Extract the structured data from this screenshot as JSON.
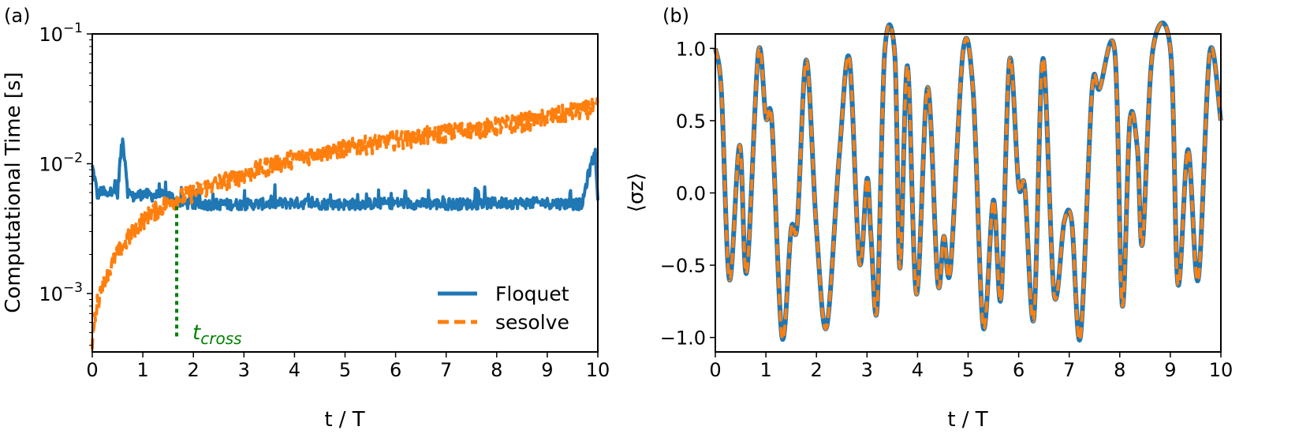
{
  "panel_a_label": "(a)",
  "panel_b_label": "(b)",
  "chart_data": [
    {
      "type": "line",
      "ylabel": "Computational Time [s]",
      "xlabel": "t / T",
      "xlim": [
        0,
        10
      ],
      "ylim_log10": [
        -3.45,
        -1.0
      ],
      "yscale": "log",
      "xticks": [
        "0",
        "1",
        "2",
        "3",
        "4",
        "5",
        "6",
        "7",
        "8",
        "9",
        "10"
      ],
      "yticks": [
        {
          "value": 0.001,
          "base": "10",
          "exp": "−3"
        },
        {
          "value": 0.01,
          "base": "10",
          "exp": "−2"
        },
        {
          "value": 0.1,
          "base": "10",
          "exp": "−1"
        }
      ],
      "legend_position": "lower-right",
      "series": [
        {
          "name": "Floquet",
          "color": "#1f77b4",
          "style": "solid",
          "x": [
            0,
            0.1,
            0.2,
            0.3,
            0.4,
            0.5,
            0.6,
            0.7,
            0.8,
            1,
            1.2,
            1.5,
            1.7,
            2,
            3,
            4,
            5,
            6,
            7,
            8,
            9,
            9.7,
            9.95,
            10
          ],
          "y": [
            0.0085,
            0.0052,
            0.0056,
            0.005,
            0.0058,
            0.0052,
            0.0135,
            0.0055,
            0.005,
            0.0053,
            0.0051,
            0.0052,
            0.0046,
            0.0044,
            0.0044,
            0.0045,
            0.0044,
            0.0045,
            0.0044,
            0.0045,
            0.0045,
            0.0044,
            0.011,
            0.0043
          ]
        },
        {
          "name": "sesolve",
          "color": "#ff7f0e",
          "style": "dashed",
          "x": [
            0,
            0.1,
            0.2,
            0.4,
            0.6,
            0.8,
            1,
            1.2,
            1.5,
            2,
            2.5,
            3,
            3.5,
            4,
            5,
            6,
            7,
            8,
            9,
            9.5,
            10
          ],
          "y": [
            0.0004,
            0.0008,
            0.0011,
            0.0016,
            0.0022,
            0.0028,
            0.0035,
            0.004,
            0.0048,
            0.0057,
            0.0068,
            0.0078,
            0.0092,
            0.0105,
            0.0125,
            0.0145,
            0.0165,
            0.0185,
            0.0215,
            0.024,
            0.026
          ]
        }
      ],
      "annotation": {
        "label": "t",
        "subscript": "cross",
        "x": 1.67,
        "y_from": 0.00045,
        "y_to": 0.0047,
        "color": "#008000"
      }
    },
    {
      "type": "line",
      "ylabel": "⟨σz⟩",
      "xlabel": "t / T",
      "xlim": [
        0,
        10
      ],
      "ylim": [
        -1.1,
        1.1
      ],
      "xticks": [
        "0",
        "1",
        "2",
        "3",
        "4",
        "5",
        "6",
        "7",
        "8",
        "9",
        "10"
      ],
      "yticks": [
        {
          "value": 1.0,
          "label": "1.0"
        },
        {
          "value": 0.5,
          "label": "0.5"
        },
        {
          "value": 0.0,
          "label": "0.0"
        },
        {
          "value": -0.5,
          "label": "−0.5"
        },
        {
          "value": -1.0,
          "label": "−1.0"
        }
      ],
      "series": [
        {
          "name": "Floquet",
          "color": "#1f77b4",
          "style": "solid",
          "x": [
            0,
            0.12,
            0.28,
            0.48,
            0.62,
            0.85,
            1.0,
            1.12,
            1.32,
            1.5,
            1.62,
            1.8,
            2.0,
            2.2,
            2.45,
            2.65,
            2.85,
            3.0,
            3.08,
            3.2,
            3.35,
            3.55,
            3.65,
            3.8,
            3.98,
            4.2,
            4.4,
            4.52,
            4.65,
            4.9,
            5.1,
            5.3,
            5.5,
            5.65,
            5.82,
            6.0,
            6.12,
            6.3,
            6.48,
            6.7,
            6.9,
            7.05,
            7.22,
            7.45,
            7.6,
            7.9,
            8.05,
            8.2,
            8.35,
            8.45,
            8.65,
            9.0,
            9.15,
            9.35,
            9.55,
            9.78,
            10.0
          ],
          "y": [
            1.0,
            0.7,
            -0.6,
            0.33,
            -0.55,
            0.97,
            0.52,
            0.48,
            -1.0,
            -0.25,
            -0.22,
            0.92,
            -0.25,
            -0.93,
            0.25,
            0.93,
            -0.48,
            0.1,
            -0.3,
            -0.8,
            0.97,
            0.95,
            -0.52,
            0.88,
            -0.7,
            0.73,
            -0.62,
            -0.3,
            -0.53,
            0.98,
            0.7,
            -0.93,
            -0.05,
            -0.73,
            0.92,
            0.05,
            0.04,
            -0.87,
            0.93,
            -0.7,
            -0.2,
            -0.2,
            -1.0,
            0.7,
            0.72,
            0.98,
            -0.78,
            0.5,
            0.3,
            -0.35,
            0.98,
            1.0,
            -0.63,
            0.3,
            -0.6,
            0.97,
            0.5
          ]
        },
        {
          "name": "sesolve",
          "color": "#ff7f0e",
          "style": "dashed",
          "x": [
            0,
            0.12,
            0.28,
            0.48,
            0.62,
            0.85,
            1.0,
            1.12,
            1.32,
            1.5,
            1.62,
            1.8,
            2.0,
            2.2,
            2.45,
            2.65,
            2.85,
            3.0,
            3.08,
            3.2,
            3.35,
            3.55,
            3.65,
            3.8,
            3.98,
            4.2,
            4.4,
            4.52,
            4.65,
            4.9,
            5.1,
            5.3,
            5.5,
            5.65,
            5.82,
            6.0,
            6.12,
            6.3,
            6.48,
            6.7,
            6.9,
            7.05,
            7.22,
            7.45,
            7.6,
            7.9,
            8.05,
            8.2,
            8.35,
            8.45,
            8.65,
            9.0,
            9.15,
            9.35,
            9.55,
            9.78,
            10.0
          ],
          "y": [
            1.0,
            0.7,
            -0.6,
            0.33,
            -0.55,
            0.97,
            0.52,
            0.48,
            -1.0,
            -0.25,
            -0.22,
            0.92,
            -0.25,
            -0.93,
            0.25,
            0.93,
            -0.48,
            0.1,
            -0.3,
            -0.8,
            0.97,
            0.95,
            -0.52,
            0.88,
            -0.7,
            0.73,
            -0.62,
            -0.3,
            -0.53,
            0.98,
            0.7,
            -0.93,
            -0.05,
            -0.73,
            0.92,
            0.05,
            0.04,
            -0.87,
            0.93,
            -0.7,
            -0.2,
            -0.2,
            -1.0,
            0.7,
            0.72,
            0.98,
            -0.78,
            0.5,
            0.3,
            -0.35,
            0.98,
            1.0,
            -0.63,
            0.3,
            -0.6,
            0.97,
            0.5
          ]
        }
      ]
    }
  ]
}
